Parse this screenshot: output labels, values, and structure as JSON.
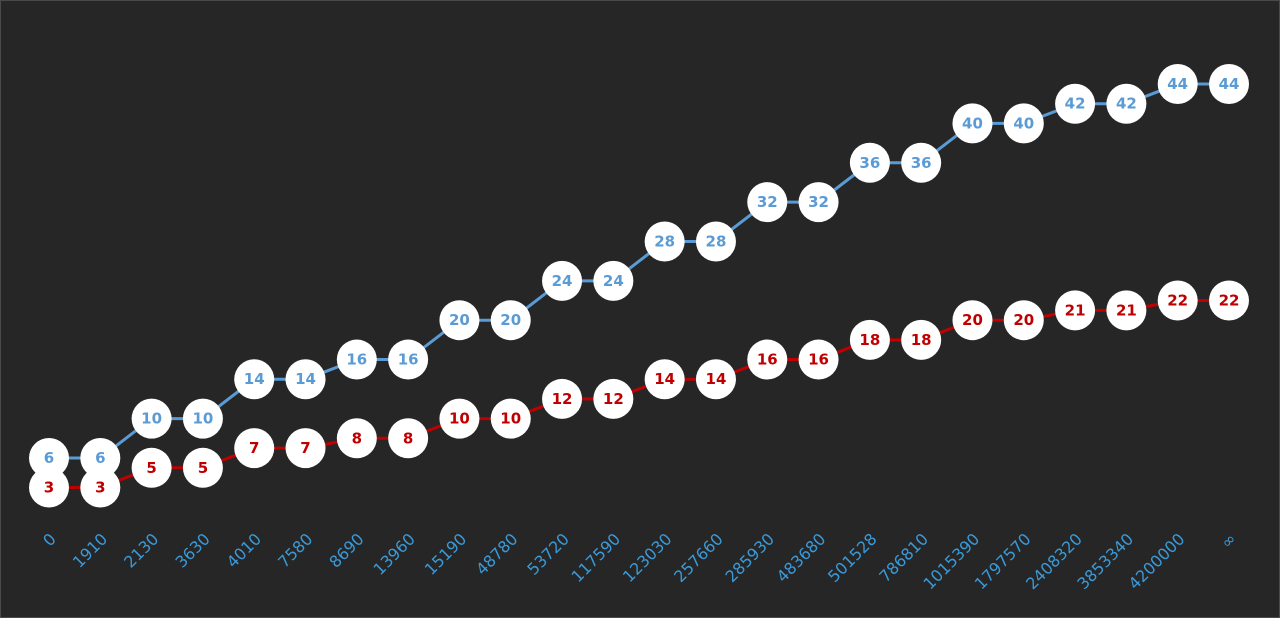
{
  "chart_data": {
    "type": "line",
    "categories": [
      "0",
      "1910",
      "2130",
      "3630",
      "4010",
      "7580",
      "8690",
      "13960",
      "15190",
      "48780",
      "53720",
      "117590",
      "123030",
      "257660",
      "285930",
      "483680",
      "501528",
      "786810",
      "1015390",
      "1797570",
      "2408320",
      "3853340",
      "4200000",
      "∞"
    ],
    "series": [
      {
        "color": "#5b9bd5",
        "values": [
          6,
          6,
          10,
          10,
          14,
          14,
          16,
          16,
          20,
          20,
          24,
          24,
          28,
          28,
          32,
          32,
          36,
          36,
          40,
          40,
          42,
          42,
          44,
          44
        ]
      },
      {
        "color": "#c00000",
        "values": [
          3,
          3,
          5,
          5,
          7,
          7,
          8,
          8,
          10,
          10,
          12,
          12,
          14,
          14,
          16,
          16,
          18,
          18,
          20,
          20,
          21,
          21,
          22,
          22
        ]
      }
    ],
    "ylim": [
      0,
      50
    ]
  }
}
